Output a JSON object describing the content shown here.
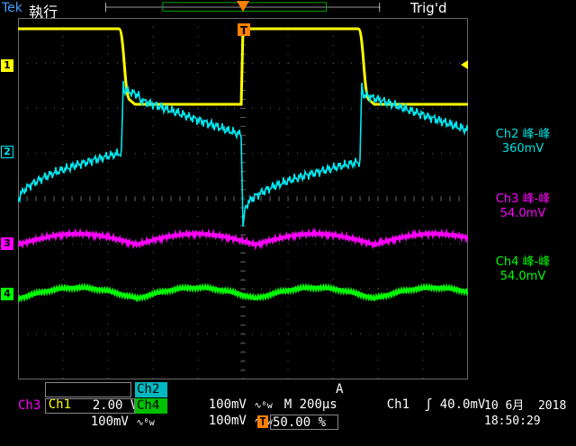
{
  "header": {
    "brand": "Tek",
    "run_state": "執行",
    "trigger_status": "Trig'd",
    "trigger_position_marker": "T"
  },
  "channels": [
    {
      "id": "1",
      "color": "#ffff00"
    },
    {
      "id": "2",
      "color": "#00ffff"
    },
    {
      "id": "3",
      "color": "#ff00ff"
    },
    {
      "id": "4",
      "color": "#00ff00"
    }
  ],
  "measurements": [
    {
      "name": "Ch2 峰-峰",
      "value": "360mV",
      "color": "#00e0e0"
    },
    {
      "name": "Ch3 峰-峰",
      "value": "54.0mV",
      "color": "#ff00ff"
    },
    {
      "name": "Ch4 峰-峰",
      "value": "54.0mV",
      "color": "#00ff00"
    }
  ],
  "readout": {
    "ch1_label": "Ch1",
    "ch1_scale": "2.00 V",
    "ch1_coupling": "∿",
    "ch2_label": "Ch2",
    "ch2_scale": "100mV",
    "ch2_coupling": "∿ᴮw",
    "ch3_label": "Ch3",
    "ch3_scale": "100mV",
    "ch3_coupling": "∿ᴮw",
    "ch4_label": "Ch4",
    "ch4_scale": "100mV",
    "ch4_coupling": "∿ᴮw",
    "timebase_label": "M",
    "timebase": "200µs",
    "trigger_mode": "A",
    "trigger_source": "Ch1",
    "trigger_slope": "ʃ",
    "trigger_level": "40.0mV",
    "trigger_pos_icon": "T",
    "trigger_pos": "50.00 %",
    "date": "10 6月  2018",
    "time": "18:50:29"
  },
  "colors": {
    "ch1": "#ffff00",
    "ch2": "#00e8f0",
    "ch3": "#ff00ff",
    "ch4": "#00ff00",
    "trigger": "#ff8000",
    "grid": "#5a5a5a"
  }
}
